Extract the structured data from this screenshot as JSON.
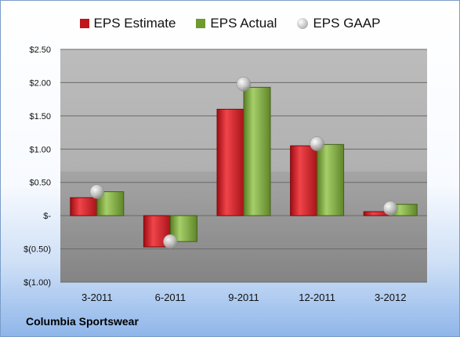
{
  "chart_data": {
    "type": "bar",
    "categories": [
      "3-2011",
      "6-2011",
      "9-2011",
      "12-2011",
      "3-2012"
    ],
    "series": [
      {
        "name": "EPS Estimate",
        "kind": "bar",
        "color": "#c0151b",
        "values": [
          0.27,
          -0.47,
          1.6,
          1.05,
          0.06
        ]
      },
      {
        "name": "EPS Actual",
        "kind": "bar",
        "color": "#6e9a2e",
        "values": [
          0.36,
          -0.39,
          1.93,
          1.07,
          0.17
        ]
      },
      {
        "name": "EPS GAAP",
        "kind": "dot",
        "color": "#b8b8b8",
        "values": [
          0.36,
          -0.39,
          1.98,
          1.08,
          0.11
        ]
      }
    ],
    "ylim": [
      -1.0,
      2.5
    ],
    "yticks": [
      {
        "value": 2.5,
        "label": "$2.50"
      },
      {
        "value": 2.0,
        "label": "$2.00"
      },
      {
        "value": 1.5,
        "label": "$1.50"
      },
      {
        "value": 1.0,
        "label": "$1.00"
      },
      {
        "value": 0.5,
        "label": "$0.50"
      },
      {
        "value": 0.0,
        "label": "$-"
      },
      {
        "value": -0.5,
        "label": "$(0.50)"
      },
      {
        "value": -1.0,
        "label": "$(1.00)"
      }
    ],
    "grid": true,
    "legend_position": "top"
  },
  "footer": {
    "company": "Columbia Sportswear"
  }
}
